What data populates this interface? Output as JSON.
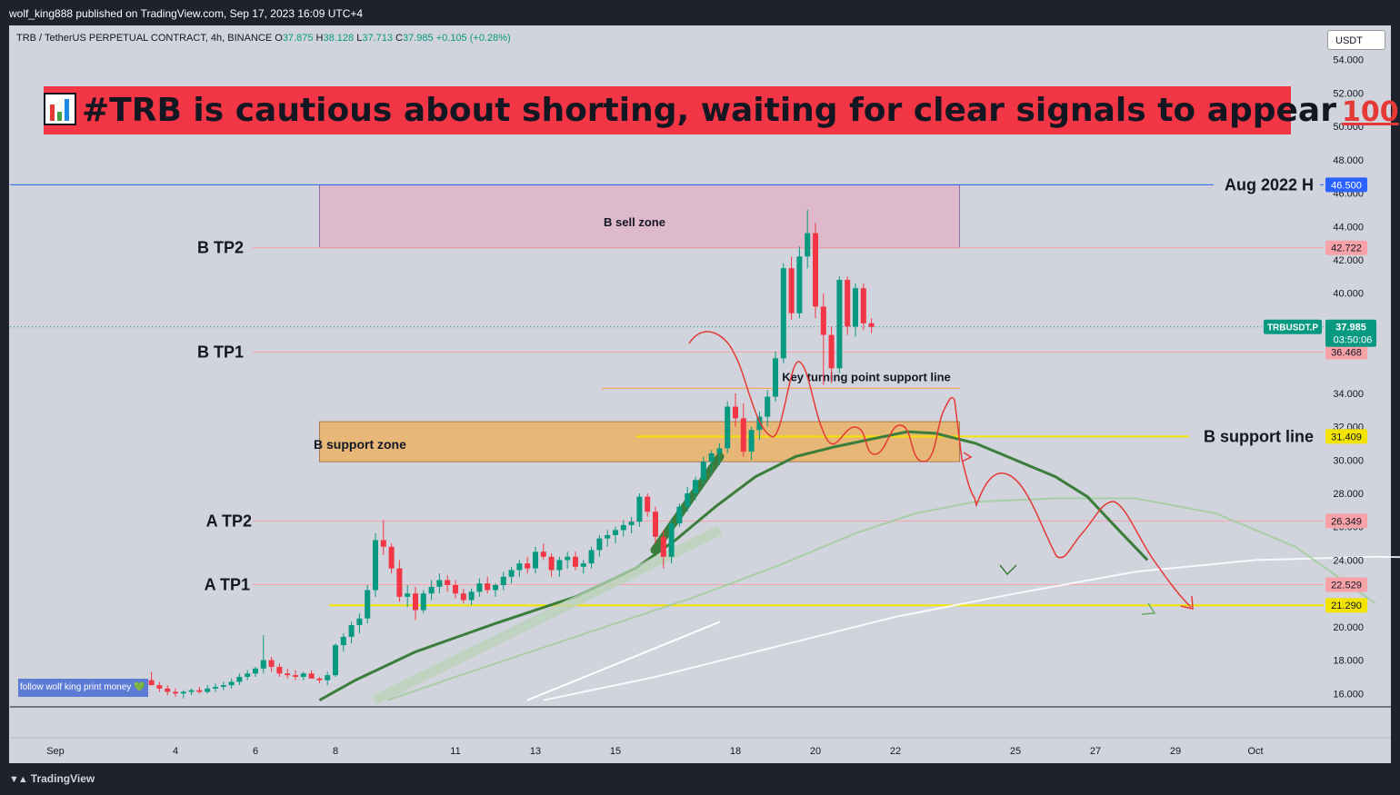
{
  "header": {
    "published_by": "wolf_king888 published on TradingView.com, Sep 17, 2023 16:09 UTC+4"
  },
  "symbol_line": {
    "name": "TRB / TetherUS PERPETUAL CONTRACT, 4h, BINANCE",
    "o_label": "O",
    "o": "37.875",
    "h_label": "H",
    "h": "38.128",
    "l_label": "L",
    "l": "37.713",
    "c_label": "C",
    "c": "37.985",
    "change": "+0.105 (+0.28%)"
  },
  "currency_button": "USDT",
  "banner": {
    "text": "#TRB is cautious about shorting, waiting for clear signals to appear",
    "emoji_end": "100"
  },
  "footer": {
    "brand": "TradingView"
  },
  "follow_note": "follow wolf king print money 💚",
  "colors": {
    "up": "#089981",
    "down": "#f23645",
    "banner": "#f23645",
    "sell_zone": "#e1b3c8",
    "support_zone": "#e8b46a",
    "yellow_line": "#f2e300",
    "blue_line": "#2962ff"
  },
  "chart_data": {
    "type": "candlestick",
    "symbol": "TRBUSDT.P",
    "interval": "4h",
    "ylim": [
      15.2,
      55.4
    ],
    "y_ticks": [
      "54.000",
      "52.000",
      "50.000",
      "48.000",
      "46.000",
      "44.000",
      "42.000",
      "40.000",
      "34.000",
      "32.000",
      "30.000",
      "28.000",
      "26.000",
      "24.000",
      "20.000",
      "18.000",
      "16.000"
    ],
    "x_ticks": [
      {
        "label": "Sep",
        "day": 1
      },
      {
        "label": "4",
        "day": 4
      },
      {
        "label": "6",
        "day": 6
      },
      {
        "label": "8",
        "day": 8
      },
      {
        "label": "11",
        "day": 11
      },
      {
        "label": "13",
        "day": 13
      },
      {
        "label": "15",
        "day": 15
      },
      {
        "label": "18",
        "day": 18
      },
      {
        "label": "20",
        "day": 20
      },
      {
        "label": "22",
        "day": 22
      },
      {
        "label": "25",
        "day": 25
      },
      {
        "label": "27",
        "day": 27
      },
      {
        "label": "29",
        "day": 29
      },
      {
        "label": "Oct",
        "day": 31
      }
    ],
    "price_labels": [
      {
        "text": "46.500",
        "value": 46.5,
        "color": "#2962ff"
      },
      {
        "text": "42.722",
        "value": 42.722,
        "color": "#f7a1a9"
      },
      {
        "text": "36.468",
        "value": 36.468,
        "color": "#f7a1a9"
      },
      {
        "text": "31.409",
        "value": 31.409,
        "color": "#f2e300"
      },
      {
        "text": "26.349",
        "value": 26.349,
        "color": "#f7a1a9"
      },
      {
        "text": "22.529",
        "value": 22.529,
        "color": "#f7a1a9"
      },
      {
        "text": "21.290",
        "value": 21.29,
        "color": "#f2e300"
      }
    ],
    "last_price": {
      "symbol": "TRBUSDT.P",
      "price": "37.985",
      "countdown": "03:50:06",
      "value": 37.985
    },
    "levels": [
      {
        "label": "Aug 2022 H",
        "value": 46.5
      },
      {
        "label": "B TP2",
        "value": 42.722
      },
      {
        "label": "B TP1",
        "value": 36.468
      },
      {
        "label": "B support line",
        "value": 31.409
      },
      {
        "label": "A TP2",
        "value": 26.349
      },
      {
        "label": "A TP1",
        "value": 22.529
      }
    ],
    "zones": [
      {
        "label": "B sell zone",
        "top": 46.5,
        "bottom": 42.722,
        "from_day": 7.6,
        "to_day": 23.6
      },
      {
        "label": "B support zone",
        "top": 32.3,
        "bottom": 29.9,
        "from_day": 7.6,
        "to_day": 23.6
      }
    ],
    "annotations": [
      {
        "text": "Key turning point support line",
        "value": 34.3
      }
    ],
    "candles": [
      [
        3.0,
        16.2,
        16.6,
        16.0,
        16.4
      ],
      [
        3.2,
        16.4,
        16.9,
        16.2,
        16.8
      ],
      [
        3.4,
        16.8,
        17.3,
        16.5,
        16.5
      ],
      [
        3.6,
        16.5,
        16.7,
        16.1,
        16.3
      ],
      [
        3.8,
        16.3,
        16.5,
        15.9,
        16.1
      ],
      [
        4.0,
        16.1,
        16.3,
        15.8,
        16.0
      ],
      [
        4.2,
        16.0,
        16.2,
        15.7,
        16.1
      ],
      [
        4.4,
        16.1,
        16.3,
        15.9,
        16.2
      ],
      [
        4.6,
        16.2,
        16.4,
        16.0,
        16.1
      ],
      [
        4.8,
        16.1,
        16.5,
        16.0,
        16.3
      ],
      [
        5.0,
        16.3,
        16.6,
        16.1,
        16.4
      ],
      [
        5.2,
        16.4,
        16.7,
        16.2,
        16.5
      ],
      [
        5.4,
        16.5,
        16.9,
        16.3,
        16.7
      ],
      [
        5.6,
        16.7,
        17.2,
        16.5,
        17.0
      ],
      [
        5.8,
        17.0,
        17.4,
        16.8,
        17.2
      ],
      [
        6.0,
        17.2,
        17.6,
        17.0,
        17.5
      ],
      [
        6.2,
        17.5,
        19.5,
        17.2,
        18.0
      ],
      [
        6.4,
        18.0,
        18.2,
        17.3,
        17.6
      ],
      [
        6.6,
        17.6,
        17.8,
        17.0,
        17.2
      ],
      [
        6.8,
        17.2,
        17.5,
        16.9,
        17.1
      ],
      [
        7.0,
        17.1,
        17.4,
        16.8,
        17.0
      ],
      [
        7.2,
        17.0,
        17.3,
        16.8,
        17.2
      ],
      [
        7.4,
        17.2,
        17.4,
        16.9,
        16.9
      ],
      [
        7.6,
        16.9,
        17.0,
        16.6,
        16.8
      ],
      [
        7.8,
        16.8,
        17.3,
        16.5,
        17.1
      ],
      [
        8.0,
        17.1,
        19.0,
        17.0,
        18.9
      ],
      [
        8.2,
        18.9,
        19.6,
        18.5,
        19.4
      ],
      [
        8.4,
        19.4,
        20.3,
        19.0,
        20.1
      ],
      [
        8.6,
        20.1,
        20.8,
        19.6,
        20.5
      ],
      [
        8.8,
        20.5,
        22.5,
        20.2,
        22.2
      ],
      [
        9.0,
        22.2,
        25.6,
        21.8,
        25.2
      ],
      [
        9.2,
        25.2,
        26.4,
        24.3,
        24.8
      ],
      [
        9.4,
        24.8,
        25.0,
        23.2,
        23.5
      ],
      [
        9.6,
        23.5,
        24.0,
        21.5,
        21.8
      ],
      [
        9.8,
        21.8,
        22.5,
        21.2,
        22.0
      ],
      [
        10.0,
        22.0,
        22.4,
        20.4,
        21.0
      ],
      [
        10.2,
        21.0,
        22.2,
        20.8,
        22.0
      ],
      [
        10.4,
        22.0,
        22.8,
        21.6,
        22.4
      ],
      [
        10.6,
        22.4,
        23.2,
        22.0,
        22.8
      ],
      [
        10.8,
        22.8,
        23.1,
        22.1,
        22.5
      ],
      [
        11.0,
        22.5,
        22.8,
        21.7,
        22.0
      ],
      [
        11.2,
        22.0,
        22.3,
        21.4,
        21.6
      ],
      [
        11.4,
        21.6,
        22.3,
        21.3,
        22.1
      ],
      [
        11.6,
        22.1,
        22.9,
        21.8,
        22.6
      ],
      [
        11.8,
        22.6,
        23.0,
        22.0,
        22.2
      ]
    ],
    "candles_b": [
      [
        12.0,
        22.2,
        22.6,
        21.8,
        22.5
      ],
      [
        12.2,
        22.5,
        23.3,
        22.2,
        23.0
      ],
      [
        12.4,
        23.0,
        23.6,
        22.6,
        23.4
      ],
      [
        12.6,
        23.4,
        24.0,
        23.0,
        23.8
      ],
      [
        12.8,
        23.8,
        24.2,
        23.2,
        23.5
      ],
      [
        13.0,
        23.5,
        24.8,
        23.2,
        24.5
      ],
      [
        13.2,
        24.5,
        25.0,
        24.0,
        24.2
      ],
      [
        13.4,
        24.2,
        24.4,
        23.0,
        23.4
      ],
      [
        13.6,
        23.4,
        24.2,
        23.0,
        24.0
      ],
      [
        13.8,
        24.0,
        24.5,
        23.5,
        24.2
      ],
      [
        14.0,
        24.2,
        24.5,
        23.4,
        23.6
      ],
      [
        14.2,
        23.6,
        24.0,
        23.2,
        23.8
      ],
      [
        14.4,
        23.8,
        24.8,
        23.5,
        24.6
      ],
      [
        14.6,
        24.6,
        25.5,
        24.2,
        25.3
      ],
      [
        14.8,
        25.3,
        25.8,
        24.8,
        25.5
      ],
      [
        15.0,
        25.5,
        26.0,
        25.0,
        25.8
      ],
      [
        15.2,
        25.8,
        26.4,
        25.4,
        26.1
      ],
      [
        15.4,
        26.1,
        26.6,
        25.6,
        26.3
      ],
      [
        15.6,
        26.3,
        28.0,
        26.0,
        27.8
      ],
      [
        15.8,
        27.8,
        28.0,
        26.6,
        26.9
      ],
      [
        16.0,
        26.9,
        27.2,
        25.0,
        25.4
      ],
      [
        16.2,
        25.4,
        25.8,
        23.5,
        24.2
      ],
      [
        16.4,
        24.2,
        26.5,
        23.8,
        26.2
      ],
      [
        16.6,
        26.2,
        27.4,
        26.0,
        27.2
      ],
      [
        16.8,
        27.2,
        28.4,
        26.9,
        28.0
      ],
      [
        17.0,
        28.0,
        29.0,
        27.6,
        28.8
      ],
      [
        17.2,
        28.8,
        30.2,
        28.5,
        29.9
      ],
      [
        17.4,
        29.9,
        30.6,
        29.2,
        30.4
      ],
      [
        17.6,
        30.4,
        31.0,
        29.7,
        30.7
      ],
      [
        17.8,
        30.7,
        33.5,
        30.4,
        33.2
      ],
      [
        18.0,
        33.2,
        34.0,
        32.0,
        32.5
      ],
      [
        18.2,
        32.5,
        33.4,
        30.2,
        30.5
      ],
      [
        18.4,
        30.5,
        32.0,
        30.0,
        31.8
      ],
      [
        18.6,
        31.8,
        32.9,
        31.2,
        32.6
      ],
      [
        18.8,
        32.6,
        34.2,
        32.0,
        33.8
      ],
      [
        19.0,
        33.8,
        36.5,
        33.5,
        36.1
      ],
      [
        19.2,
        36.1,
        41.8,
        35.8,
        41.5
      ],
      [
        19.4,
        41.5,
        42.2,
        38.4,
        38.8
      ],
      [
        19.6,
        38.8,
        42.8,
        38.5,
        42.2
      ],
      [
        19.8,
        42.2,
        45.0,
        41.5,
        43.6
      ],
      [
        20.0,
        43.6,
        44.2,
        38.5,
        39.2
      ],
      [
        20.2,
        39.2,
        40.0,
        34.5,
        37.5
      ],
      [
        20.4,
        37.5,
        38.0,
        34.6,
        35.5
      ],
      [
        20.6,
        35.5,
        41.0,
        35.2,
        40.8
      ],
      [
        20.8,
        40.8,
        41.0,
        37.5,
        38.0
      ],
      [
        21.0,
        38.0,
        40.6,
        37.4,
        40.3
      ],
      [
        21.2,
        40.3,
        40.6,
        37.8,
        38.2
      ],
      [
        21.4,
        38.2,
        38.5,
        37.6,
        37.985
      ]
    ],
    "ema_green_dark": [
      [
        7.6,
        15.6
      ],
      [
        8.5,
        16.8
      ],
      [
        10,
        18.5
      ],
      [
        12,
        20.2
      ],
      [
        14,
        21.8
      ],
      [
        15.5,
        23.5
      ],
      [
        16.5,
        25.2
      ],
      [
        17.5,
        27.2
      ],
      [
        18.5,
        29.0
      ],
      [
        19.5,
        30.2
      ],
      [
        20.5,
        30.8
      ],
      [
        21.5,
        31.3
      ],
      [
        22.3,
        31.7
      ],
      [
        23.0,
        31.6
      ],
      [
        24.0,
        31.0
      ],
      [
        25.0,
        30.0
      ],
      [
        26.0,
        29.0
      ],
      [
        26.8,
        27.8
      ],
      [
        27.5,
        26.0
      ],
      [
        28.3,
        24.0
      ]
    ],
    "ema_green_light": [
      [
        9.3,
        15.6
      ],
      [
        11,
        17.0
      ],
      [
        13,
        18.6
      ],
      [
        15,
        20.2
      ],
      [
        17,
        21.8
      ],
      [
        19,
        23.6
      ],
      [
        21,
        25.6
      ],
      [
        22.5,
        26.8
      ],
      [
        24,
        27.5
      ],
      [
        26,
        27.7
      ],
      [
        28,
        27.7
      ],
      [
        30,
        26.8
      ],
      [
        32,
        24.8
      ],
      [
        34,
        21.4
      ]
    ],
    "ema_white": [
      [
        13.2,
        15.6
      ],
      [
        16,
        17.0
      ],
      [
        19,
        18.8
      ],
      [
        22,
        20.6
      ],
      [
        25,
        22.0
      ],
      [
        28,
        23.3
      ],
      [
        31,
        24.0
      ],
      [
        34,
        24.2
      ],
      [
        37,
        24.1
      ],
      [
        38.5,
        24.0
      ],
      [
        39.5,
        23.5
      ],
      [
        40.5,
        22.8
      ]
    ]
  }
}
